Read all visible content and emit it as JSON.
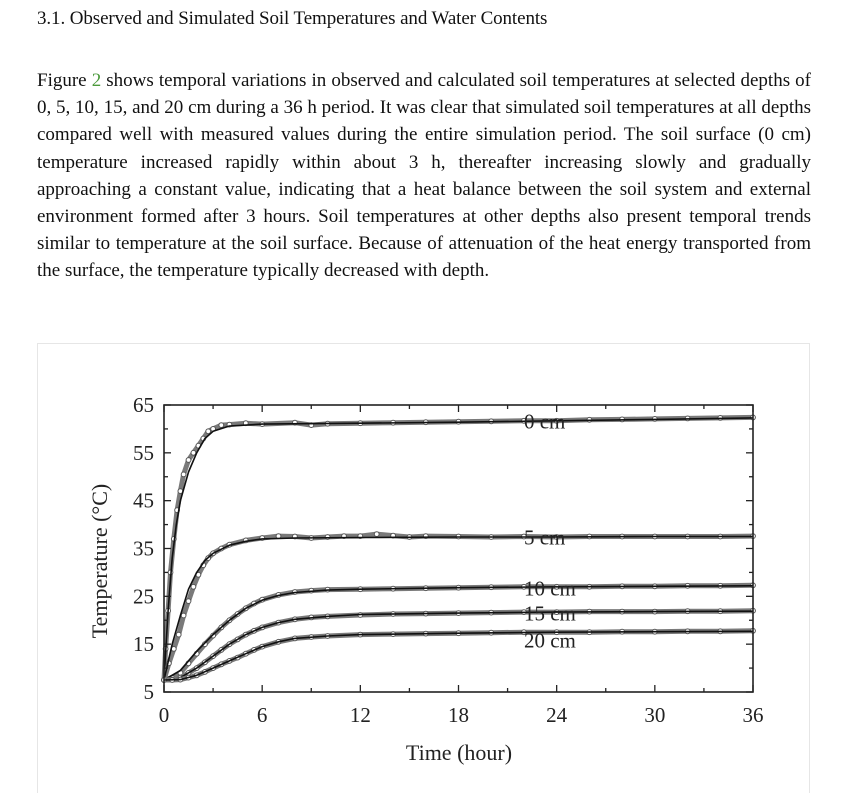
{
  "section": {
    "heading": "3.1. Observed and Simulated Soil Temperatures and Water Contents"
  },
  "paragraph": {
    "before_ref": "Figure ",
    "figure_ref": "2",
    "after_ref": " shows temporal variations in observed and calculated soil temperatures at selected depths of 0, 5, 10, 15, and 20 cm during a 36 h period. It was clear that simulated soil temperatures at all depths compared well with measured values during the entire simulation period. The soil surface (0 cm) temperature increased rapidly within about 3 h, thereafter increasing slowly and gradually approaching a constant value, indicating that a heat balance between the soil system and external environment formed after 3 hours. Soil temperatures at other depths also present temporal trends similar to temperature at the soil surface. Because of attenuation of the heat energy transported from the surface, the temperature typically decreased with depth."
  },
  "colors": {
    "figure_ref": "#4c9a3c",
    "observed": "#7a7a7a",
    "simulated": "#111111"
  },
  "chart_data": {
    "type": "line",
    "xlabel": "Time (hour)",
    "ylabel": "Temperature (°C)",
    "xlim": [
      0,
      36
    ],
    "ylim": [
      5,
      65
    ],
    "x_ticks": [
      0,
      6,
      12,
      18,
      24,
      30,
      36
    ],
    "y_ticks": [
      5,
      15,
      25,
      35,
      45,
      55,
      65
    ],
    "grid": false,
    "series": [
      {
        "name": "0 cm",
        "label_pos": [
          22,
          61.5
        ],
        "simulated": [
          [
            0,
            7.5
          ],
          [
            0.25,
            22
          ],
          [
            0.5,
            33
          ],
          [
            0.75,
            40
          ],
          [
            1,
            45
          ],
          [
            1.5,
            51
          ],
          [
            2,
            55
          ],
          [
            2.5,
            58
          ],
          [
            3,
            59.5
          ],
          [
            4,
            60.6
          ],
          [
            6,
            61
          ],
          [
            12,
            61.2
          ],
          [
            18,
            61.4
          ],
          [
            24,
            61.7
          ],
          [
            30,
            62
          ],
          [
            36,
            62.3
          ]
        ],
        "observed": [
          [
            0,
            7.5
          ],
          [
            0.1,
            14
          ],
          [
            0.25,
            22
          ],
          [
            0.4,
            30
          ],
          [
            0.6,
            37
          ],
          [
            0.8,
            43
          ],
          [
            1,
            47
          ],
          [
            1.2,
            50.5
          ],
          [
            1.5,
            53.5
          ],
          [
            1.8,
            55
          ],
          [
            2.1,
            56.5
          ],
          [
            2.4,
            58
          ],
          [
            2.7,
            59.5
          ],
          [
            3,
            60
          ],
          [
            3.5,
            60.8
          ],
          [
            4,
            60.9
          ],
          [
            5,
            61.2
          ],
          [
            6,
            61
          ],
          [
            8,
            61.3
          ],
          [
            9,
            60.8
          ],
          [
            10,
            61.1
          ],
          [
            12,
            61.2
          ],
          [
            14,
            61.3
          ],
          [
            16,
            61.4
          ],
          [
            18,
            61.5
          ],
          [
            20,
            61.6
          ],
          [
            22,
            61.7
          ],
          [
            24,
            61.7
          ],
          [
            26,
            61.9
          ],
          [
            28,
            62
          ],
          [
            30,
            62.1
          ],
          [
            32,
            62.2
          ],
          [
            34,
            62.3
          ],
          [
            36,
            62.4
          ]
        ]
      },
      {
        "name": "5 cm",
        "label_pos": [
          22,
          37.3
        ],
        "simulated": [
          [
            0,
            7.5
          ],
          [
            0.5,
            15
          ],
          [
            1,
            21
          ],
          [
            1.5,
            26.5
          ],
          [
            2,
            30
          ],
          [
            2.5,
            32.5
          ],
          [
            3,
            34
          ],
          [
            4,
            35.7
          ],
          [
            5,
            36.5
          ],
          [
            6,
            37
          ],
          [
            8,
            37.2
          ],
          [
            12,
            37.3
          ],
          [
            18,
            37.4
          ],
          [
            24,
            37.4
          ],
          [
            30,
            37.5
          ],
          [
            36,
            37.5
          ]
        ],
        "observed": [
          [
            0,
            7.5
          ],
          [
            0.3,
            11
          ],
          [
            0.6,
            14
          ],
          [
            0.9,
            17
          ],
          [
            1.2,
            21
          ],
          [
            1.5,
            24
          ],
          [
            1.8,
            27
          ],
          [
            2.1,
            29.5
          ],
          [
            2.4,
            31.5
          ],
          [
            2.7,
            33
          ],
          [
            3,
            34
          ],
          [
            3.5,
            35
          ],
          [
            4,
            35.8
          ],
          [
            5,
            36.7
          ],
          [
            6,
            37.2
          ],
          [
            7,
            37.6
          ],
          [
            8,
            37.5
          ],
          [
            9,
            37.2
          ],
          [
            10,
            37.4
          ],
          [
            11,
            37.6
          ],
          [
            12,
            37.6
          ],
          [
            13,
            38
          ],
          [
            14,
            37.7
          ],
          [
            15,
            37.4
          ],
          [
            16,
            37.6
          ],
          [
            18,
            37.5
          ],
          [
            20,
            37.4
          ],
          [
            22,
            37.5
          ],
          [
            24,
            37.4
          ],
          [
            26,
            37.5
          ],
          [
            28,
            37.5
          ],
          [
            30,
            37.5
          ],
          [
            32,
            37.5
          ],
          [
            34,
            37.5
          ],
          [
            36,
            37.6
          ]
        ]
      },
      {
        "name": "10 cm",
        "label_pos": [
          22,
          26.6
        ],
        "simulated": [
          [
            0,
            7.5
          ],
          [
            1,
            9.5
          ],
          [
            2,
            13.5
          ],
          [
            3,
            17
          ],
          [
            4,
            20
          ],
          [
            5,
            22.5
          ],
          [
            6,
            24.2
          ],
          [
            7,
            25.2
          ],
          [
            8,
            25.8
          ],
          [
            10,
            26.3
          ],
          [
            12,
            26.5
          ],
          [
            18,
            26.8
          ],
          [
            24,
            27
          ],
          [
            30,
            27.1
          ],
          [
            36,
            27.2
          ]
        ],
        "observed": [
          [
            0,
            7.5
          ],
          [
            0.5,
            8
          ],
          [
            1,
            9
          ],
          [
            1.5,
            11
          ],
          [
            2,
            13
          ],
          [
            2.5,
            15
          ],
          [
            3,
            16.8
          ],
          [
            3.5,
            18.5
          ],
          [
            4,
            20
          ],
          [
            4.5,
            21.3
          ],
          [
            5,
            22.5
          ],
          [
            5.5,
            23.5
          ],
          [
            6,
            24.3
          ],
          [
            7,
            25.3
          ],
          [
            8,
            25.9
          ],
          [
            9,
            26.2
          ],
          [
            10,
            26.4
          ],
          [
            12,
            26.5
          ],
          [
            14,
            26.6
          ],
          [
            16,
            26.7
          ],
          [
            18,
            26.8
          ],
          [
            20,
            26.9
          ],
          [
            22,
            27
          ],
          [
            24,
            27
          ],
          [
            26,
            27
          ],
          [
            28,
            27.1
          ],
          [
            30,
            27.1
          ],
          [
            32,
            27.2
          ],
          [
            34,
            27.2
          ],
          [
            36,
            27.3
          ]
        ]
      },
      {
        "name": "15 cm",
        "label_pos": [
          22,
          21.4
        ],
        "simulated": [
          [
            0,
            7.5
          ],
          [
            1,
            8
          ],
          [
            2,
            10
          ],
          [
            3,
            12.5
          ],
          [
            4,
            15
          ],
          [
            5,
            17
          ],
          [
            6,
            18.5
          ],
          [
            7,
            19.5
          ],
          [
            8,
            20.2
          ],
          [
            10,
            20.8
          ],
          [
            12,
            21.2
          ],
          [
            18,
            21.5
          ],
          [
            24,
            21.7
          ],
          [
            30,
            21.8
          ],
          [
            36,
            21.9
          ]
        ],
        "observed": [
          [
            0,
            7.5
          ],
          [
            0.5,
            7.6
          ],
          [
            1,
            8
          ],
          [
            1.5,
            9
          ],
          [
            2,
            10
          ],
          [
            2.5,
            11.2
          ],
          [
            3,
            12.5
          ],
          [
            3.5,
            13.8
          ],
          [
            4,
            15
          ],
          [
            4.5,
            16
          ],
          [
            5,
            17
          ],
          [
            5.5,
            17.8
          ],
          [
            6,
            18.5
          ],
          [
            7,
            19.5
          ],
          [
            8,
            20.2
          ],
          [
            9,
            20.6
          ],
          [
            10,
            20.8
          ],
          [
            12,
            21.1
          ],
          [
            14,
            21.3
          ],
          [
            16,
            21.4
          ],
          [
            18,
            21.5
          ],
          [
            20,
            21.6
          ],
          [
            22,
            21.7
          ],
          [
            24,
            21.7
          ],
          [
            26,
            21.8
          ],
          [
            28,
            21.8
          ],
          [
            30,
            21.8
          ],
          [
            32,
            21.9
          ],
          [
            34,
            21.9
          ],
          [
            36,
            22
          ]
        ]
      },
      {
        "name": "20 cm",
        "label_pos": [
          22,
          15.8
        ],
        "simulated": [
          [
            0,
            7.5
          ],
          [
            1,
            7.6
          ],
          [
            2,
            8.5
          ],
          [
            3,
            10
          ],
          [
            4,
            11.5
          ],
          [
            5,
            13
          ],
          [
            6,
            14.5
          ],
          [
            7,
            15.5
          ],
          [
            8,
            16.2
          ],
          [
            10,
            16.7
          ],
          [
            12,
            17
          ],
          [
            18,
            17.3
          ],
          [
            24,
            17.5
          ],
          [
            30,
            17.6
          ],
          [
            36,
            17.7
          ]
        ],
        "observed": [
          [
            0,
            7.5
          ],
          [
            0.5,
            7.5
          ],
          [
            1,
            7.6
          ],
          [
            1.5,
            8
          ],
          [
            2,
            8.5
          ],
          [
            2.5,
            9.2
          ],
          [
            3,
            10
          ],
          [
            3.5,
            10.8
          ],
          [
            4,
            11.5
          ],
          [
            4.5,
            12.2
          ],
          [
            5,
            13
          ],
          [
            5.5,
            13.8
          ],
          [
            6,
            14.5
          ],
          [
            7,
            15.5
          ],
          [
            8,
            16.2
          ],
          [
            9,
            16.5
          ],
          [
            10,
            16.7
          ],
          [
            12,
            17
          ],
          [
            14,
            17.1
          ],
          [
            16,
            17.2
          ],
          [
            18,
            17.3
          ],
          [
            20,
            17.4
          ],
          [
            22,
            17.5
          ],
          [
            24,
            17.5
          ],
          [
            26,
            17.5
          ],
          [
            28,
            17.6
          ],
          [
            30,
            17.6
          ],
          [
            32,
            17.7
          ],
          [
            34,
            17.7
          ],
          [
            36,
            17.8
          ]
        ]
      }
    ]
  }
}
